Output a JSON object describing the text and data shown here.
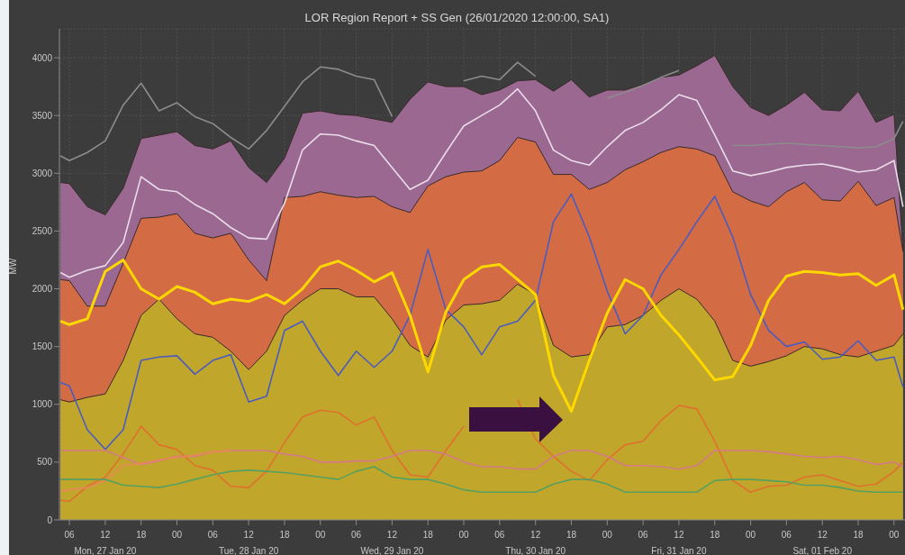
{
  "chart_data": {
    "type": "line",
    "title": "LOR Region Report + SS Gen (26/01/2020 12:00:00, SA1)",
    "ylabel": "MW",
    "x": [
      "2020-01-27T04:30",
      "2020-01-27T06:00",
      "2020-01-27T09:00",
      "2020-01-27T12:00",
      "2020-01-27T15:00",
      "2020-01-27T18:00",
      "2020-01-27T21:00",
      "2020-01-28T00:00",
      "2020-01-28T03:00",
      "2020-01-28T06:00",
      "2020-01-28T09:00",
      "2020-01-28T12:00",
      "2020-01-28T15:00",
      "2020-01-28T18:00",
      "2020-01-28T21:00",
      "2020-01-29T00:00",
      "2020-01-29T03:00",
      "2020-01-29T06:00",
      "2020-01-29T09:00",
      "2020-01-29T12:00",
      "2020-01-29T15:00",
      "2020-01-29T18:00",
      "2020-01-29T21:00",
      "2020-01-30T00:00",
      "2020-01-30T03:00",
      "2020-01-30T06:00",
      "2020-01-30T09:00",
      "2020-01-30T12:00",
      "2020-01-30T15:00",
      "2020-01-30T18:00",
      "2020-01-30T21:00",
      "2020-01-31T00:00",
      "2020-01-31T03:00",
      "2020-01-31T06:00",
      "2020-01-31T09:00",
      "2020-01-31T12:00",
      "2020-01-31T15:00",
      "2020-01-31T18:00",
      "2020-01-31T21:00",
      "2020-02-01T00:00",
      "2020-02-01T03:00",
      "2020-02-01T06:00",
      "2020-02-01T09:00",
      "2020-02-01T12:00",
      "2020-02-01T15:00",
      "2020-02-01T18:00",
      "2020-02-01T21:00",
      "2020-02-02T00:00",
      "2020-02-02T01:30"
    ],
    "series": [
      {
        "type": "area",
        "color": "#9a6890",
        "values": [
          2920,
          2910,
          2710,
          2640,
          2870,
          3300,
          3330,
          3360,
          3240,
          3210,
          3280,
          3050,
          2920,
          3130,
          3520,
          3540,
          3510,
          3500,
          3470,
          3440,
          3640,
          3790,
          3750,
          3750,
          3680,
          3720,
          3800,
          3810,
          3710,
          3810,
          3660,
          3720,
          3720,
          3770,
          3830,
          3850,
          3930,
          4020,
          3750,
          3570,
          3500,
          3590,
          3700,
          3550,
          3540,
          3710,
          3440,
          3510,
          2330
        ]
      },
      {
        "type": "area",
        "color": "#d36c45",
        "values": [
          2080,
          2070,
          1850,
          1850,
          2220,
          2610,
          2620,
          2650,
          2480,
          2440,
          2480,
          2250,
          2070,
          2790,
          2800,
          2840,
          2810,
          2790,
          2800,
          2710,
          2660,
          2890,
          2970,
          3010,
          3020,
          3110,
          3310,
          3270,
          2990,
          2990,
          2860,
          2920,
          3030,
          3100,
          3180,
          3230,
          3210,
          3150,
          2840,
          2760,
          2710,
          2840,
          2920,
          2770,
          2760,
          2930,
          2720,
          2790,
          2320
        ]
      },
      {
        "type": "area",
        "color": "#c0a62b",
        "values": [
          1040,
          1020,
          1060,
          1090,
          1380,
          1770,
          1910,
          1740,
          1610,
          1580,
          1460,
          1300,
          1460,
          1770,
          1900,
          2000,
          2000,
          1930,
          1930,
          1740,
          1510,
          1410,
          1730,
          1860,
          1870,
          1900,
          2040,
          1950,
          1510,
          1410,
          1430,
          1670,
          1690,
          1770,
          1900,
          2000,
          1910,
          1720,
          1380,
          1330,
          1370,
          1420,
          1500,
          1480,
          1430,
          1410,
          1460,
          1510,
          1610
        ]
      },
      {
        "color": "#8c8c8c",
        "values": [
          3150,
          3110,
          3180,
          3280,
          3590,
          3780,
          3540,
          3610,
          3490,
          3430,
          3310,
          3210,
          3370,
          3580,
          3790,
          3920,
          3900,
          3840,
          3810,
          3490,
          null,
          null,
          null,
          3800,
          3840,
          3810,
          3960,
          3840,
          null,
          null,
          null,
          3650,
          3700,
          3760,
          3830,
          3890,
          null,
          null,
          3240,
          3240,
          3250,
          3260,
          3250,
          3240,
          3230,
          3220,
          3230,
          3300,
          3450
        ]
      },
      {
        "color": "#eadcea",
        "values": [
          2140,
          2100,
          2160,
          2200,
          2400,
          2970,
          2860,
          2840,
          2730,
          2650,
          2530,
          2440,
          2430,
          2740,
          3200,
          3340,
          3330,
          3280,
          3240,
          3050,
          2860,
          2940,
          3180,
          3410,
          3500,
          3590,
          3730,
          3540,
          3200,
          3110,
          3070,
          3230,
          3370,
          3440,
          3550,
          3680,
          3630,
          3330,
          3020,
          2980,
          3010,
          3050,
          3070,
          3080,
          3050,
          3010,
          3030,
          3110,
          2710
        ]
      },
      {
        "color": "#4a5cc0",
        "values": [
          1190,
          1160,
          780,
          610,
          780,
          1380,
          1410,
          1420,
          1260,
          1380,
          1430,
          1020,
          1070,
          1640,
          1720,
          1460,
          1250,
          1460,
          1320,
          1460,
          1770,
          2340,
          1820,
          1670,
          1430,
          1670,
          1720,
          1900,
          2580,
          2820,
          2450,
          1980,
          1610,
          1770,
          2120,
          2340,
          2580,
          2800,
          2450,
          1950,
          1640,
          1500,
          1540,
          1390,
          1410,
          1550,
          1380,
          1410,
          1150
        ]
      },
      {
        "color": "#e0702e",
        "values": [
          170,
          160,
          290,
          370,
          570,
          810,
          650,
          610,
          470,
          430,
          290,
          280,
          420,
          670,
          890,
          950,
          930,
          820,
          890,
          600,
          390,
          370,
          600,
          810,
          null,
          null,
          1040,
          700,
          550,
          420,
          340,
          520,
          650,
          680,
          860,
          990,
          960,
          680,
          340,
          240,
          290,
          300,
          370,
          390,
          340,
          290,
          310,
          420,
          500
        ]
      },
      {
        "color": "#d67a8a",
        "values": [
          600,
          600,
          600,
          600,
          540,
          480,
          510,
          550,
          550,
          590,
          600,
          600,
          600,
          570,
          550,
          500,
          500,
          510,
          510,
          550,
          600,
          600,
          570,
          500,
          460,
          460,
          440,
          440,
          550,
          600,
          600,
          550,
          470,
          470,
          460,
          440,
          470,
          600,
          600,
          600,
          590,
          570,
          550,
          540,
          550,
          520,
          480,
          500,
          460
        ]
      },
      {
        "color": "#e8885a",
        "values": [
          250,
          260,
          280,
          340,
          470,
          490,
          520,
          540,
          560,
          590,
          600,
          null,
          null,
          null,
          null,
          null,
          null,
          null,
          null,
          null,
          null,
          null,
          null,
          null,
          null,
          null,
          null,
          null,
          null,
          null,
          null,
          null,
          null,
          null,
          null,
          null,
          null,
          null,
          null,
          null,
          null,
          null,
          null,
          null,
          null,
          null,
          null,
          null,
          null
        ]
      },
      {
        "color": "#58a060",
        "values": [
          350,
          350,
          350,
          350,
          300,
          290,
          280,
          310,
          350,
          390,
          420,
          430,
          420,
          410,
          390,
          370,
          350,
          420,
          460,
          370,
          350,
          350,
          310,
          260,
          240,
          240,
          240,
          240,
          310,
          350,
          350,
          310,
          240,
          240,
          240,
          240,
          240,
          340,
          350,
          350,
          340,
          330,
          300,
          300,
          280,
          250,
          240,
          240,
          240
        ]
      },
      {
        "color": "#ffd800",
        "values": [
          1720,
          1690,
          1740,
          2150,
          2250,
          2000,
          1910,
          2020,
          1970,
          1870,
          1910,
          1890,
          1950,
          1870,
          2000,
          2190,
          2240,
          2160,
          2060,
          2140,
          1770,
          1280,
          1800,
          2080,
          2190,
          2210,
          2080,
          1950,
          1250,
          940,
          1380,
          1790,
          2080,
          2000,
          1770,
          1600,
          1410,
          1210,
          1240,
          1510,
          1900,
          2110,
          2150,
          2140,
          2120,
          2130,
          2030,
          2120,
          1820
        ]
      }
    ],
    "xlim": [
      "2020-01-27T04:20",
      "2020-02-02T01:50"
    ],
    "xticks": [
      {
        "value": "2020-01-27T06:00",
        "label": "06"
      },
      {
        "value": "2020-01-27T12:00",
        "label": "12\nMon, 27 Jan 20"
      },
      {
        "value": "2020-01-27T18:00",
        "label": "18"
      },
      {
        "value": "2020-01-28T00:00",
        "label": "00"
      },
      {
        "value": "2020-01-28T06:00",
        "label": "06"
      },
      {
        "value": "2020-01-28T12:00",
        "label": "12\nTue, 28 Jan 20"
      },
      {
        "value": "2020-01-28T18:00",
        "label": "18"
      },
      {
        "value": "2020-01-29T00:00",
        "label": "00"
      },
      {
        "value": "2020-01-29T06:00",
        "label": "06"
      },
      {
        "value": "2020-01-29T12:00",
        "label": "12\nWed, 29 Jan 20"
      },
      {
        "value": "2020-01-29T18:00",
        "label": "18"
      },
      {
        "value": "2020-01-30T00:00",
        "label": "00"
      },
      {
        "value": "2020-01-30T06:00",
        "label": "06"
      },
      {
        "value": "2020-01-30T12:00",
        "label": "12\nThu, 30 Jan 20"
      },
      {
        "value": "2020-01-30T18:00",
        "label": "18"
      },
      {
        "value": "2020-01-31T00:00",
        "label": "00"
      },
      {
        "value": "2020-01-31T06:00",
        "label": "06"
      },
      {
        "value": "2020-01-31T12:00",
        "label": "12\nFri, 31 Jan 20"
      },
      {
        "value": "2020-01-31T18:00",
        "label": "18"
      },
      {
        "value": "2020-02-01T00:00",
        "label": "00"
      },
      {
        "value": "2020-02-01T06:00",
        "label": "06"
      },
      {
        "value": "2020-02-01T12:00",
        "label": "12\nSat, 01 Feb 20"
      },
      {
        "value": "2020-02-01T18:00",
        "label": "18"
      },
      {
        "value": "2020-02-02T00:00",
        "label": "00"
      }
    ],
    "ylim": [
      0,
      4250
    ],
    "yticks": [
      0,
      500,
      1000,
      1500,
      2000,
      2500,
      3000,
      3500,
      4000
    ],
    "grid": true
  }
}
